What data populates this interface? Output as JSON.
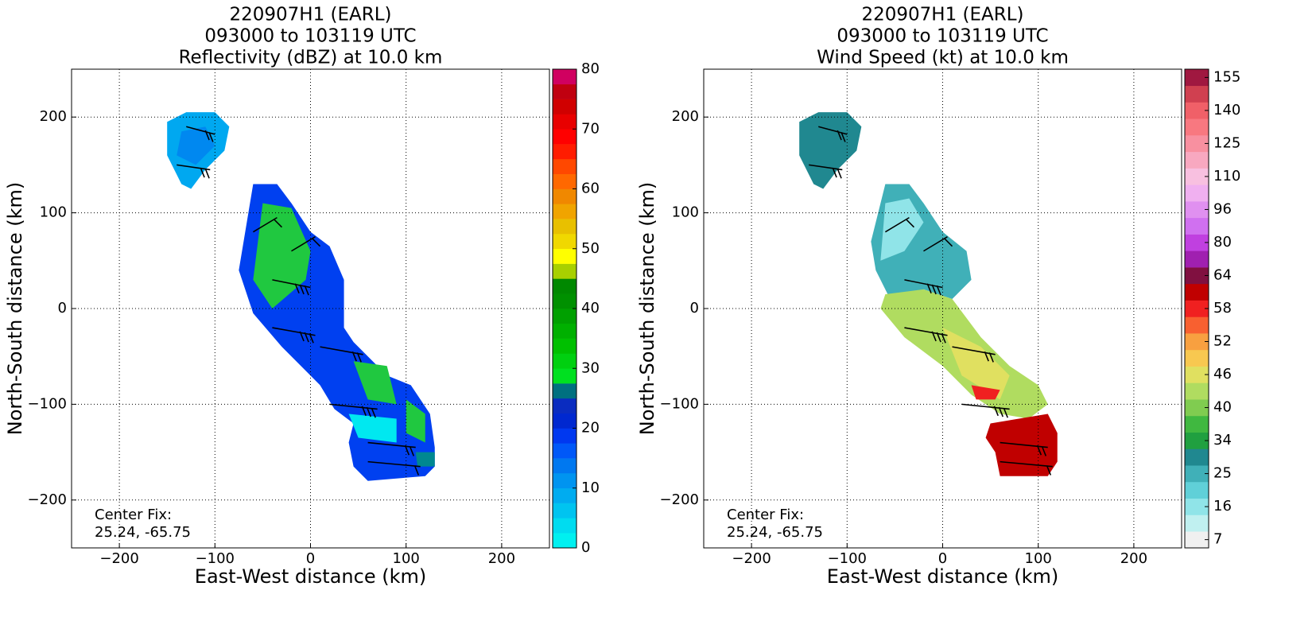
{
  "chart_data": [
    {
      "type": "heatmap",
      "title": [
        "220907H1 (EARL)",
        "093000 to 103119 UTC",
        "Reflectivity (dBZ) at 10.0 km"
      ],
      "xlabel": "East-West distance (km)",
      "ylabel": "North-South distance (km)",
      "xlim": [
        -250,
        250
      ],
      "ylim": [
        -250,
        250
      ],
      "xticks": [
        {
          "value": -200,
          "label": "−200"
        },
        {
          "value": -100,
          "label": "−100"
        },
        0,
        100,
        200
      ],
      "yticks": [
        {
          "value": -200,
          "label": "−200"
        },
        {
          "value": -100,
          "label": "−100"
        },
        0,
        100,
        200
      ],
      "grid": true,
      "annotation": [
        "Center Fix:",
        "25.24, -65.75"
      ],
      "colorbar": {
        "lim": [
          0,
          80
        ],
        "ticks": [
          0,
          10,
          20,
          30,
          40,
          50,
          60,
          70,
          80
        ],
        "colors": [
          "#00f0f0",
          "#00dcf0",
          "#00c4f0",
          "#00acf0",
          "#0094f0",
          "#0078f0",
          "#0058f8",
          "#0038f0",
          "#0028d0",
          "#0a2cc0",
          "#007080",
          "#00e020",
          "#00d010",
          "#00c000",
          "#00b000",
          "#00a000",
          "#009000",
          "#008800",
          "#a8d000",
          "#ffff00",
          "#f0d800",
          "#e8c000",
          "#f0a400",
          "#f08800",
          "#ff6800",
          "#ff4800",
          "#ff1c00",
          "#ff0000",
          "#e80000",
          "#d00000",
          "#c00010",
          "#d00060"
        ]
      }
    },
    {
      "type": "heatmap",
      "title": [
        "220907H1 (EARL)",
        "093000 to 103119 UTC",
        "Wind Speed (kt) at 10.0 km"
      ],
      "xlabel": "East-West distance (km)",
      "ylabel": "North-South distance (km)",
      "xlim": [
        -250,
        250
      ],
      "ylim": [
        -250,
        250
      ],
      "xticks": [
        {
          "value": -200,
          "label": "−200"
        },
        {
          "value": -100,
          "label": "−100"
        },
        0,
        100,
        200
      ],
      "yticks": [
        {
          "value": -200,
          "label": "−200"
        },
        {
          "value": -100,
          "label": "−100"
        },
        0,
        100,
        200
      ],
      "grid": true,
      "annotation": [
        "Center Fix:",
        "25.24, -65.75"
      ],
      "colorbar": {
        "ticks": [
          7,
          16,
          25,
          34,
          40,
          46,
          52,
          58,
          64,
          80,
          96,
          110,
          125,
          140,
          155
        ],
        "colors": [
          "#f0f0f0",
          "#c0f0f0",
          "#90e4e8",
          "#60d0d8",
          "#40b0b8",
          "#208890",
          "#20a040",
          "#40b840",
          "#80cc50",
          "#b0dc60",
          "#e0e060",
          "#f8c850",
          "#f8a040",
          "#f86030",
          "#f02020",
          "#c00000",
          "#801040",
          "#a020b0",
          "#c040e0",
          "#d070f0",
          "#e090f0",
          "#f0b0f0",
          "#f8c0e0",
          "#f8a8c0",
          "#f890a0",
          "#f87880",
          "#f06068",
          "#d04050",
          "#a01840"
        ]
      }
    }
  ]
}
